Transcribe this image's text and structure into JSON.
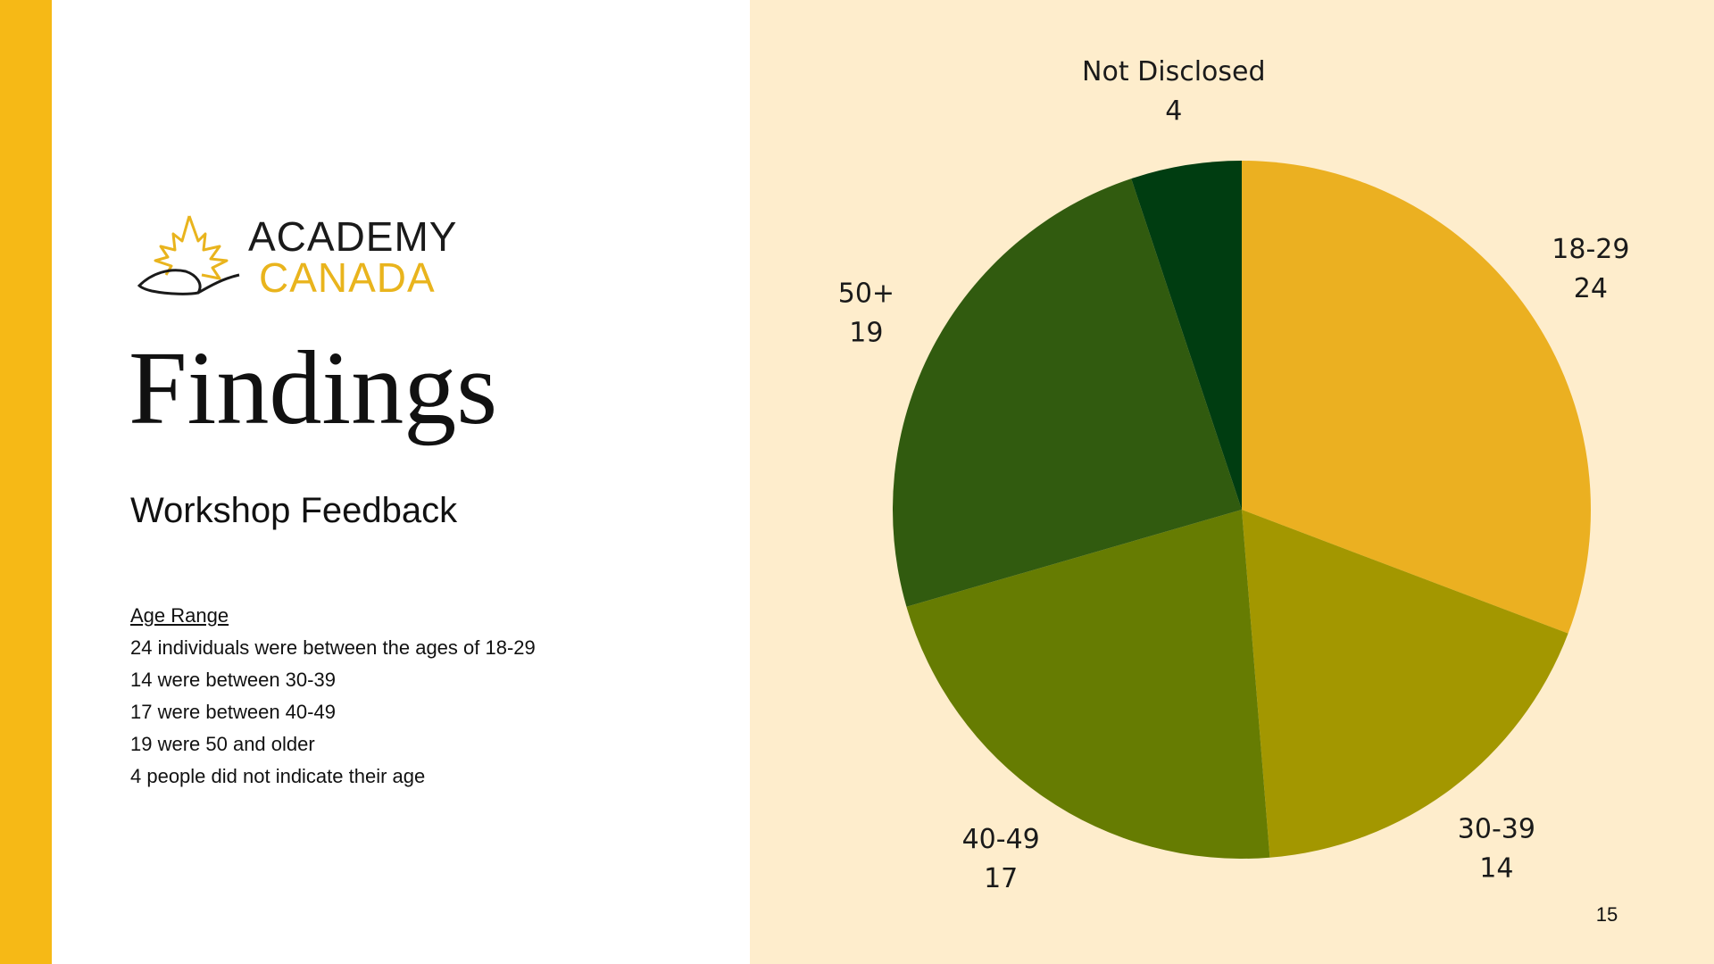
{
  "colors": {
    "accent": "#F6B916",
    "panel": "#FEEDCC",
    "logo_dark": "#1a1a1a",
    "logo_gold": "#E9B41D"
  },
  "logo": {
    "line1": "ACADEMY",
    "line2": "CANADA"
  },
  "slide": {
    "title": "Findings",
    "subtitle": "Workshop Feedback",
    "notes_heading": "Age Range",
    "notes": [
      "24 individuals were between the ages of 18-29",
      "14 were between 30-39",
      "17 were between 40-49",
      "19 were 50 and older",
      "4 people did not indicate their age"
    ],
    "page_number": "15"
  },
  "chart_data": {
    "type": "pie",
    "title": "",
    "start_angle_deg": 0,
    "direction": "clockwise",
    "legend": "none",
    "slices": [
      {
        "label": "18-29",
        "value": 24,
        "color": "#EBB021"
      },
      {
        "label": "30-39",
        "value": 14,
        "color": "#A39700"
      },
      {
        "label": "40-49",
        "value": 17,
        "color": "#667C02"
      },
      {
        "label": "50+",
        "value": 19,
        "color": "#315B0F"
      },
      {
        "label": "Not Disclosed",
        "value": 4,
        "color": "#003D11"
      }
    ]
  }
}
